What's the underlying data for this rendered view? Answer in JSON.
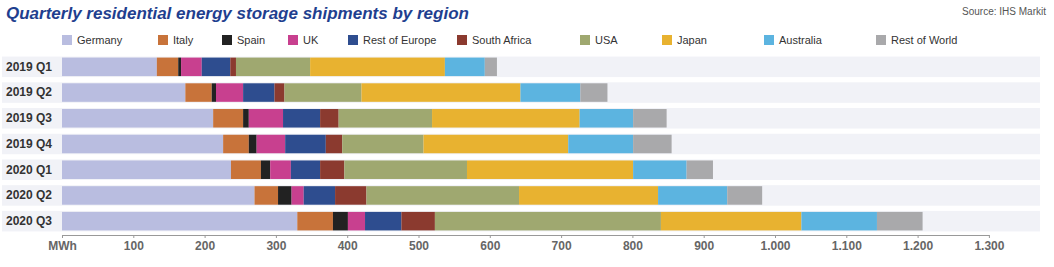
{
  "chart_data": {
    "type": "bar",
    "title": "Quarterly residential energy storage shipments by region",
    "source": "Source: IHS Markit",
    "orientation": "horizontal",
    "stacked": true,
    "legend": "top",
    "grid": false,
    "categories": [
      "2019 Q1",
      "2019 Q2",
      "2019 Q3",
      "2019 Q4",
      "2020 Q1",
      "2020 Q2",
      "2020 Q3"
    ],
    "xlim": [
      0,
      1300
    ],
    "xticks": [
      {
        "value": 0,
        "label": "MWh"
      },
      100,
      200,
      300,
      400,
      500,
      600,
      700,
      800,
      900,
      {
        "value": 1000,
        "label": "1.000"
      },
      {
        "value": 1100,
        "label": "1.100"
      },
      {
        "value": 1200,
        "label": "1.200"
      },
      {
        "value": 1300,
        "label": "1.300"
      }
    ],
    "series": [
      {
        "name": "Germany",
        "color": "#b9bde0",
        "values": [
          133,
          173,
          212,
          226,
          237,
          270,
          330
        ]
      },
      {
        "name": "Italy",
        "color": "#c8733a",
        "values": [
          30,
          37,
          42,
          36,
          42,
          33,
          50
        ]
      },
      {
        "name": "Spain",
        "color": "#222222",
        "values": [
          4,
          6,
          8,
          11,
          13,
          19,
          21
        ]
      },
      {
        "name": "UK",
        "color": "#c8408f",
        "values": [
          29,
          38,
          48,
          40,
          29,
          17,
          24
        ]
      },
      {
        "name": "Rest of Europe",
        "color": "#2e4d8f",
        "values": [
          40,
          44,
          52,
          57,
          41,
          44,
          51
        ]
      },
      {
        "name": "South Africa",
        "color": "#8b3a2f",
        "values": [
          8,
          14,
          26,
          23,
          34,
          44,
          47
        ]
      },
      {
        "name": "USA",
        "color": "#9fa870",
        "values": [
          104,
          108,
          131,
          114,
          172,
          214,
          317
        ]
      },
      {
        "name": "Japan",
        "color": "#e8b230",
        "values": [
          189,
          223,
          207,
          203,
          233,
          195,
          197
        ]
      },
      {
        "name": "Australia",
        "color": "#5cb4e0",
        "values": [
          56,
          84,
          75,
          91,
          75,
          97,
          106
        ]
      },
      {
        "name": "Rest of World",
        "color": "#a9a9ab",
        "values": [
          17,
          38,
          47,
          54,
          37,
          49,
          64
        ]
      }
    ]
  }
}
